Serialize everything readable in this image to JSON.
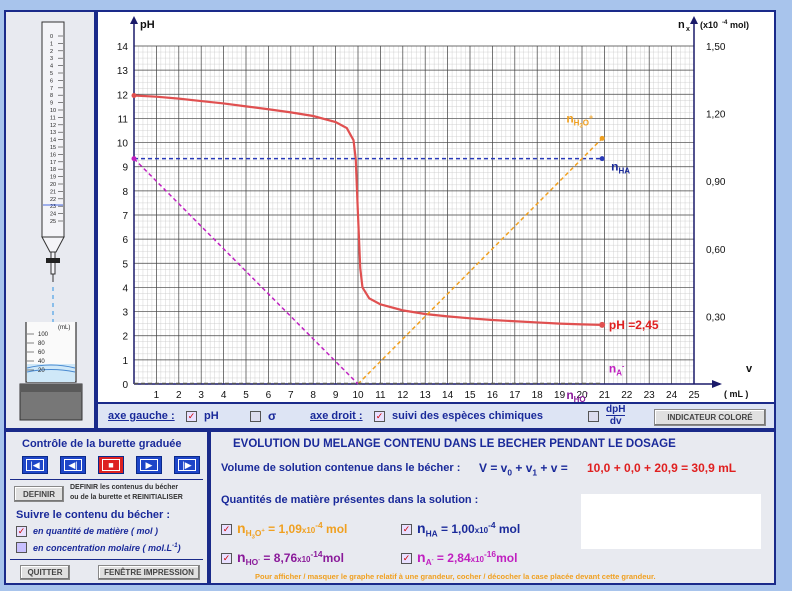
{
  "plot": {
    "y_axis_label": "pH",
    "y2_axis_label": "n",
    "y2_axis_sub": "x",
    "y2_unit": "(x10",
    "y2_unit_exp": "-4",
    "y2_unit_end": "mol)",
    "x_axis_label": "v",
    "x_unit": "( mL )",
    "y_ticks": [
      "0",
      "1",
      "2",
      "3",
      "4",
      "5",
      "6",
      "7",
      "8",
      "9",
      "10",
      "11",
      "12",
      "13",
      "14"
    ],
    "y2_ticks": [
      "0,30",
      "0,60",
      "0,90",
      "1,20",
      "1,50"
    ],
    "x_ticks": [
      "1",
      "2",
      "3",
      "4",
      "5",
      "6",
      "7",
      "8",
      "9",
      "10",
      "11",
      "12",
      "13",
      "14",
      "15",
      "16",
      "17",
      "18",
      "19",
      "20",
      "21",
      "22",
      "23",
      "24",
      "25"
    ],
    "x_origin": "0",
    "ph_label": "pH =2,45",
    "label_nha": "n",
    "label_nha_sub": "HA",
    "label_nh3o": "n",
    "label_nh3o_sub": "H",
    "label_nh3o_sub2": "3",
    "label_nh3o_sub3": "O",
    "label_nh3o_sup": "+",
    "label_na": "n",
    "label_na_sub": "A",
    "label_na_sup": "-",
    "label_nho": "n",
    "label_nho_sub": "HO",
    "label_nho_sup": "-"
  },
  "chart_data": {
    "type": "line",
    "xlabel": "v ( mL )",
    "ylabel": "pH",
    "y2label": "nx (x10-4 mol)",
    "xlim": [
      0,
      25
    ],
    "ylim": [
      0,
      14
    ],
    "y2lim": [
      0,
      1.5
    ],
    "grid": true,
    "series": [
      {
        "name": "pH",
        "axis": "left",
        "color": "#e05050",
        "x": [
          0,
          1,
          2,
          3,
          4,
          5,
          6,
          7,
          8,
          9,
          9.5,
          9.8,
          9.9,
          10,
          10.1,
          10.2,
          10.5,
          11,
          12,
          13,
          14,
          15,
          16,
          17,
          18,
          19,
          20,
          20.9
        ],
        "y": [
          11.95,
          11.9,
          11.82,
          11.72,
          11.62,
          11.5,
          11.38,
          11.25,
          11.1,
          10.85,
          10.6,
          10.1,
          9.3,
          7.0,
          4.8,
          4.0,
          3.55,
          3.3,
          3.05,
          2.9,
          2.8,
          2.72,
          2.65,
          2.6,
          2.55,
          2.5,
          2.47,
          2.45
        ]
      },
      {
        "name": "nHA",
        "axis": "right",
        "color": "#2a3ab8",
        "x": [
          0,
          20.9
        ],
        "y": [
          1.0,
          1.0
        ]
      },
      {
        "name": "nH3O+",
        "axis": "right",
        "color": "#f0a020",
        "x": [
          10,
          20.9
        ],
        "y": [
          0,
          1.09
        ]
      },
      {
        "name": "nA-",
        "axis": "right",
        "color": "#c020c0",
        "x": [
          0,
          10
        ],
        "y": [
          1.0,
          0
        ]
      },
      {
        "name": "nHO-",
        "axis": "right",
        "color": "#555555",
        "x": [
          0,
          20.9
        ],
        "y": [
          0.002,
          0.002
        ]
      }
    ]
  },
  "burette": {
    "ticks": [
      "0",
      "1",
      "2",
      "3",
      "4",
      "5",
      "6",
      "7",
      "8",
      "9",
      "10",
      "11",
      "12",
      "13",
      "14",
      "15",
      "16",
      "17",
      "18",
      "19",
      "20",
      "21",
      "22",
      "23",
      "24",
      "25"
    ]
  },
  "beaker": {
    "unit": "(mL)",
    "ticks": [
      "100",
      "80",
      "60",
      "40",
      "20"
    ]
  },
  "axis_bar": {
    "left_label": "axe gauche :",
    "ph": "pH",
    "sigma": "σ",
    "right_label": "axe droit :",
    "species": "suivi des espèces chimiques",
    "dph": "dpH",
    "dv": "dv",
    "indicator_button": "INDICATEUR COLORÉ"
  },
  "controls": {
    "burette_title": "Contrôle de la burette graduée",
    "define_button": "DEFINIR",
    "define_desc1": "DEFINIR les contenus du bécher",
    "define_desc2": "ou de la burette et REINITIALISER",
    "follow_title": "Suivre le contenu du bécher :",
    "opt_quantity": "en quantité de matière ( mol )",
    "opt_conc": "en concentration molaire ( mol.L",
    "opt_conc_exp": "-1",
    "opt_conc_end": ")",
    "quit_button": "QUITTER",
    "print_button": "FENÊTRE IMPRESSION"
  },
  "info": {
    "title": "EVOLUTION  DU  MELANGE  CONTENU  DANS  LE  BECHER  PENDANT  LE  DOSAGE",
    "volume_label": "Volume de solution contenue dans le bécher :",
    "volume_formula": "V = v",
    "volume_formula2": " + v",
    "volume_formula3": " + v =",
    "volume_values": "10,0 + 0,0 + 20,9 = 30,9 mL",
    "quantities_label": "Quantités de matière présentes dans la solution :",
    "nh3o_value": "= 1,09",
    "nh3o_exp": "-4",
    "nha_value": "= 1,00",
    "nha_exp": "-4",
    "nho_value": "= 8,76",
    "nho_exp": "-14",
    "na_value": "= 2,84",
    "na_exp": "-16",
    "times10": "x10",
    "mol": "mol",
    "footer": "Pour afficher / masquer le graphe relatif à une grandeur, cocher / décocher la case placée devant cette grandeur."
  }
}
